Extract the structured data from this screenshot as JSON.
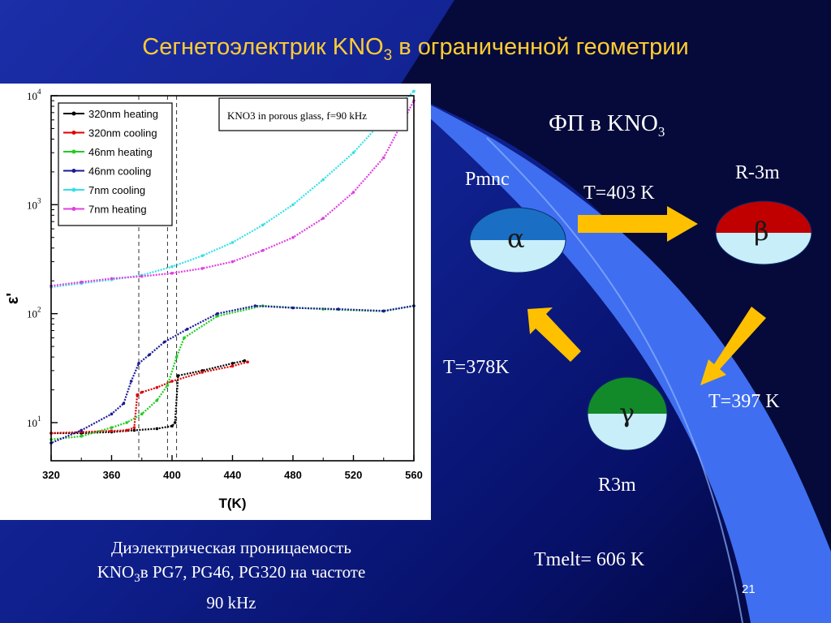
{
  "slide": {
    "title": "Сегнетоэлектрик KNO",
    "title_sub": "3",
    "title_rest": " в ограниченной геометрии",
    "page_number": "21",
    "caption_line1": "Диэлектрическая проницаемость",
    "caption_line2_a": "KNO",
    "caption_line2_sub": "3",
    "caption_line2_b": "в PG7, PG46, PG320 на частоте",
    "caption_line3": "90 kHz"
  },
  "diagram": {
    "header": "ФП в KNO",
    "header_sub": "3",
    "alpha": {
      "group": "Pmnc",
      "symbol": "α",
      "top_color": "#1a6fc4",
      "bottom_color": "#c8eefa"
    },
    "beta": {
      "group": "R-3m",
      "symbol": "β",
      "top_color": "#c00000",
      "bottom_color": "#c8eefa"
    },
    "gamma": {
      "group": "R3m",
      "symbol": "γ",
      "top_color": "#138a2a",
      "bottom_color": "#c8eefa"
    },
    "t_alpha_beta": "T=403 K",
    "t_beta_gamma": "T=397 K",
    "t_gamma_alpha": "T=378K",
    "tmelt": "Tmelt= 606 K",
    "arrow_color": "#ffc000"
  },
  "chart_data": {
    "type": "line",
    "annotation": "KNO3 in porous glass, f=90 kHz",
    "xlabel": "T(K)",
    "ylabel": "ε'",
    "xlim": [
      320,
      560
    ],
    "ylim_log10": [
      0.65,
      4
    ],
    "x_ticks": [
      "320",
      "360",
      "400",
      "440",
      "480",
      "520",
      "560"
    ],
    "y_ticks": [
      {
        "base": "10",
        "exp": "1",
        "value": 10
      },
      {
        "base": "10",
        "exp": "2",
        "value": 100
      },
      {
        "base": "10",
        "exp": "3",
        "value": 1000
      },
      {
        "base": "10",
        "exp": "4",
        "value": 10000
      }
    ],
    "vlines": [
      378,
      397,
      403
    ],
    "legend_position": "top-left",
    "series": [
      {
        "name": "320nm heating",
        "color": "#000000",
        "x": [
          320,
          340,
          360,
          375,
          390,
          400,
          402,
          404,
          420,
          440,
          448
        ],
        "y": [
          8,
          8,
          8.2,
          8.5,
          8.8,
          9.3,
          10,
          27,
          30,
          35,
          37
        ]
      },
      {
        "name": "320nm cooling",
        "color": "#dd0000",
        "x": [
          450,
          440,
          420,
          400,
          390,
          380,
          377,
          375,
          370,
          360,
          340,
          320
        ],
        "y": [
          36,
          33,
          29,
          24,
          21,
          19,
          18,
          9,
          8.5,
          8.4,
          8.2,
          8
        ]
      },
      {
        "name": "46nm heating",
        "color": "#22cc22",
        "x": [
          320,
          340,
          360,
          370,
          380,
          390,
          397,
          403,
          408,
          430,
          460,
          500,
          540,
          560
        ],
        "y": [
          7,
          7.5,
          9,
          10,
          12,
          16,
          22,
          40,
          60,
          95,
          118,
          110,
          105,
          118
        ]
      },
      {
        "name": "46nm cooling",
        "color": "#1a1a99",
        "x": [
          560,
          540,
          510,
          480,
          455,
          430,
          410,
          395,
          385,
          378,
          373,
          368,
          360,
          340,
          320
        ],
        "y": [
          118,
          106,
          110,
          113,
          118,
          100,
          72,
          55,
          42,
          35,
          24,
          15,
          12,
          8.5,
          6.5
        ]
      },
      {
        "name": "7nm cooling",
        "color": "#33e0e8",
        "x": [
          320,
          340,
          360,
          380,
          400,
          420,
          440,
          460,
          480,
          500,
          520,
          540,
          560
        ],
        "y": [
          175,
          190,
          205,
          225,
          270,
          340,
          450,
          650,
          1000,
          1700,
          3000,
          6000,
          11000
        ]
      },
      {
        "name": "7nm heating",
        "color": "#e040e0",
        "x": [
          320,
          340,
          360,
          380,
          400,
          420,
          440,
          460,
          480,
          500,
          520,
          540,
          560
        ],
        "y": [
          180,
          195,
          210,
          220,
          235,
          260,
          300,
          380,
          500,
          750,
          1300,
          2700,
          9000
        ]
      }
    ]
  }
}
